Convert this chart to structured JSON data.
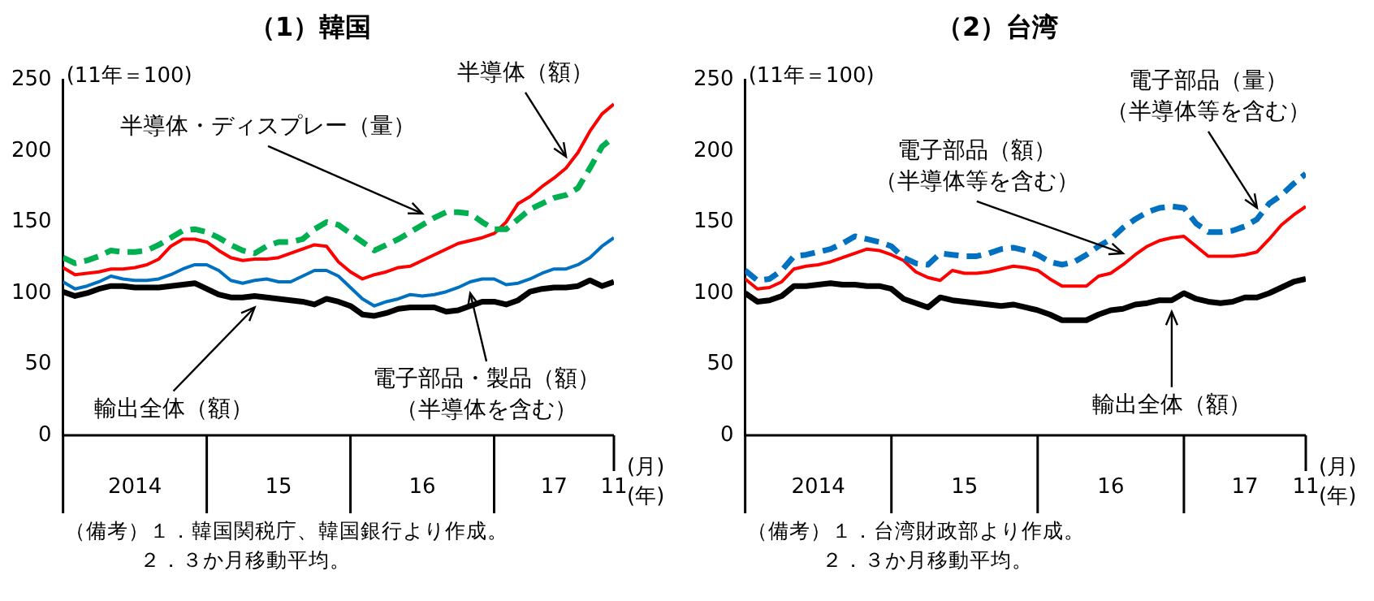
{
  "chart_data": [
    {
      "type": "line",
      "title": "（1）韓国",
      "ylabel": "(11年＝100)",
      "xlabel": "(月)\n(年)",
      "x": [
        "2014-01",
        "2014-02",
        "2014-03",
        "2014-04",
        "2014-05",
        "2014-06",
        "2014-07",
        "2014-08",
        "2014-09",
        "2014-10",
        "2014-11",
        "2014-12",
        "2015-01",
        "2015-02",
        "2015-03",
        "2015-04",
        "2015-05",
        "2015-06",
        "2015-07",
        "2015-08",
        "2015-09",
        "2015-10",
        "2015-11",
        "2015-12",
        "2016-01",
        "2016-02",
        "2016-03",
        "2016-04",
        "2016-05",
        "2016-06",
        "2016-07",
        "2016-08",
        "2016-09",
        "2016-10",
        "2016-11",
        "2016-12",
        "2017-01",
        "2017-02",
        "2017-03",
        "2017-04",
        "2017-05",
        "2017-06",
        "2017-07",
        "2017-08",
        "2017-09",
        "2017-10",
        "2017-11"
      ],
      "xlim": [
        "2014-01",
        "2017-11"
      ],
      "xticks": [
        {
          "value": "2014-07",
          "label": "2014"
        },
        {
          "value": "2015-07",
          "label": "15"
        },
        {
          "value": "2016-07",
          "label": "16"
        },
        {
          "value": "2017-06",
          "label": "17"
        },
        {
          "value": "2017-11",
          "label": "11"
        }
      ],
      "ylim": [
        0,
        250
      ],
      "yticks": [
        0,
        50,
        100,
        150,
        200,
        250
      ],
      "grid": false,
      "legend": false,
      "series": [
        {
          "color": "#00b050",
          "line_style": "dashed",
          "values": [
            125,
            121,
            123,
            126,
            130,
            129,
            129,
            130,
            134,
            139,
            144,
            145,
            143,
            139,
            134,
            130,
            128,
            133,
            136,
            136,
            138,
            145,
            150,
            148,
            142,
            136,
            130,
            134,
            138,
            143,
            148,
            153,
            157,
            157,
            156,
            150,
            145,
            145,
            152,
            159,
            163,
            167,
            169,
            174,
            188,
            203,
            210
          ]
        },
        {
          "color": "#ff0000",
          "line_style": "solid",
          "values": [
            118,
            113,
            114,
            115,
            117,
            117,
            118,
            120,
            124,
            133,
            138,
            138,
            136,
            130,
            125,
            123,
            124,
            124,
            125,
            128,
            131,
            134,
            133,
            122,
            115,
            110,
            113,
            115,
            118,
            119,
            123,
            127,
            131,
            135,
            137,
            139,
            142,
            150,
            163,
            168,
            175,
            181,
            188,
            199,
            214,
            226,
            233
          ]
        },
        {
          "color": "#0070c0",
          "line_style": "solid",
          "values": [
            108,
            103,
            105,
            108,
            112,
            110,
            109,
            109,
            110,
            113,
            117,
            120,
            120,
            116,
            109,
            107,
            109,
            110,
            108,
            108,
            112,
            116,
            116,
            112,
            104,
            96,
            91,
            94,
            96,
            99,
            98,
            99,
            101,
            104,
            108,
            110,
            110,
            106,
            107,
            110,
            114,
            117,
            117,
            120,
            125,
            133,
            139
          ]
        },
        {
          "color": "#000000",
          "line_style": "solid",
          "values": [
            101,
            98,
            100,
            103,
            105,
            105,
            104,
            104,
            104,
            105,
            106,
            107,
            103,
            99,
            97,
            97,
            98,
            97,
            96,
            95,
            94,
            92,
            96,
            94,
            91,
            85,
            84,
            86,
            89,
            90,
            90,
            90,
            87,
            88,
            91,
            94,
            94,
            92,
            95,
            101,
            103,
            104,
            104,
            105,
            109,
            105,
            108
          ]
        }
      ],
      "annotations": [
        {
          "text": "半導体（額）",
          "x": "2017-07",
          "y": 188
        },
        {
          "text": "半導体・ディスプレー（量）",
          "x": "2016-07",
          "y": 148
        },
        {
          "text": "輸出全体（額）",
          "x": "2015-05",
          "y": 98
        },
        {
          "text": "電子部品・製品（額）（半導体を含む）",
          "x": "2016-11",
          "y": 108
        },
        "（備考）１．韓国関税庁、韓国銀行より作成。",
        "２．３か月移動平均。"
      ]
    },
    {
      "type": "line",
      "title": "（2）台湾",
      "ylabel": "(11年＝100)",
      "xlabel": "(月)\n(年)",
      "x": [
        "2014-01",
        "2014-02",
        "2014-03",
        "2014-04",
        "2014-05",
        "2014-06",
        "2014-07",
        "2014-08",
        "2014-09",
        "2014-10",
        "2014-11",
        "2014-12",
        "2015-01",
        "2015-02",
        "2015-03",
        "2015-04",
        "2015-05",
        "2015-06",
        "2015-07",
        "2015-08",
        "2015-09",
        "2015-10",
        "2015-11",
        "2015-12",
        "2016-01",
        "2016-02",
        "2016-03",
        "2016-04",
        "2016-05",
        "2016-06",
        "2016-07",
        "2016-08",
        "2016-09",
        "2016-10",
        "2016-11",
        "2016-12",
        "2017-01",
        "2017-02",
        "2017-03",
        "2017-04",
        "2017-05",
        "2017-06",
        "2017-07",
        "2017-08",
        "2017-09",
        "2017-10",
        "2017-11"
      ],
      "xlim": [
        "2014-01",
        "2017-11"
      ],
      "xticks": [
        {
          "value": "2014-07",
          "label": "2014"
        },
        {
          "value": "2015-07",
          "label": "15"
        },
        {
          "value": "2016-07",
          "label": "16"
        },
        {
          "value": "2017-06",
          "label": "17"
        },
        {
          "value": "2017-11",
          "label": "11"
        }
      ],
      "ylim": [
        0,
        250
      ],
      "yticks": [
        0,
        50,
        100,
        150,
        200,
        250
      ],
      "grid": false,
      "legend": false,
      "series": [
        {
          "color": "#0070c0",
          "line_style": "dashed",
          "values": [
            116,
            109,
            110,
            116,
            126,
            127,
            129,
            131,
            135,
            140,
            138,
            136,
            133,
            125,
            121,
            120,
            128,
            127,
            126,
            126,
            128,
            131,
            132,
            130,
            127,
            122,
            120,
            122,
            127,
            133,
            138,
            146,
            152,
            157,
            160,
            161,
            160,
            149,
            143,
            143,
            144,
            147,
            152,
            163,
            169,
            177,
            184
          ]
        },
        {
          "color": "#ff0000",
          "line_style": "solid",
          "values": [
            110,
            103,
            104,
            108,
            117,
            119,
            120,
            122,
            125,
            128,
            131,
            130,
            127,
            123,
            115,
            111,
            109,
            116,
            114,
            114,
            115,
            117,
            119,
            118,
            116,
            110,
            105,
            105,
            105,
            112,
            114,
            120,
            127,
            133,
            137,
            139,
            140,
            133,
            126,
            126,
            126,
            127,
            129,
            138,
            148,
            155,
            161
          ]
        },
        {
          "color": "#000000",
          "line_style": "solid",
          "values": [
            100,
            94,
            95,
            98,
            105,
            105,
            106,
            107,
            106,
            106,
            105,
            105,
            103,
            96,
            93,
            90,
            97,
            95,
            94,
            93,
            92,
            91,
            92,
            90,
            88,
            85,
            81,
            81,
            81,
            85,
            88,
            89,
            92,
            93,
            95,
            95,
            100,
            96,
            94,
            93,
            94,
            97,
            97,
            100,
            104,
            108,
            110
          ]
        }
      ],
      "annotations": [
        {
          "text": "電子部品（額）（半導体等を含む）",
          "x": "2016-08",
          "y": 120
        },
        {
          "text": "電子部品（量）（半導体等を含む）",
          "x": "2017-07",
          "y": 152
        },
        {
          "text": "輸出全体（額）",
          "x": "2016-12",
          "y": 95
        },
        "（備考）１．台湾財政部より作成。",
        "２．３か月移動平均。"
      ]
    }
  ]
}
